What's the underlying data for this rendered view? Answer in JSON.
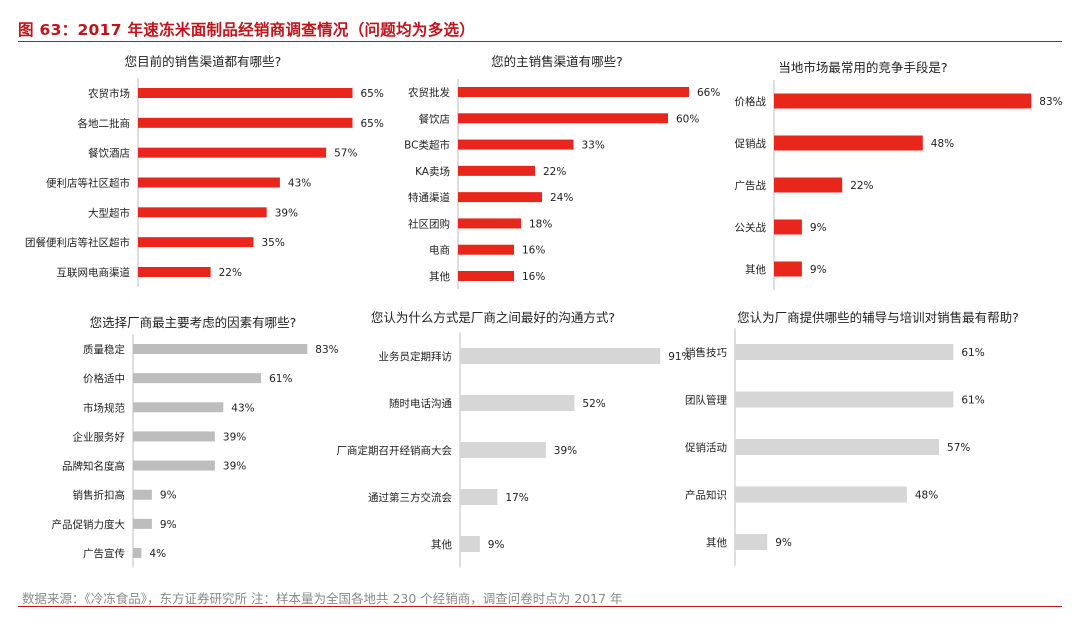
{
  "title": "图 63：2017 年速冻米面制品经销商调查情况（问题均为多选）",
  "footer": "数据来源：《冷冻食品》，东方证券研究所 注：样本量为全国各地共 230 个经销商，调查问卷时点为 2017 年",
  "colors": {
    "accent": "#c0141c",
    "red_bar": "#e8261c",
    "gray_bar": "#bdbdbd",
    "light_gray_bar": "#d6d6d6"
  },
  "chart_data": [
    {
      "type": "bar",
      "orientation": "horizontal",
      "title": "您目前的销售渠道都有哪些?",
      "categories": [
        "农贸市场",
        "各地二批商",
        "餐饮酒店",
        "便利店等社区超市",
        "大型超市",
        "团餐便利店等社区超市",
        "互联网电商渠道"
      ],
      "values": [
        65,
        65,
        57,
        43,
        39,
        35,
        22
      ],
      "unit": "%",
      "xlim": [
        0,
        100
      ],
      "grid": false
    },
    {
      "type": "bar",
      "orientation": "horizontal",
      "title": "您的主销售渠道有哪些?",
      "categories": [
        "农贸批发",
        "餐饮店",
        "BC类超市",
        "KA卖场",
        "特通渠道",
        "社区团购",
        "电商",
        "其他"
      ],
      "values": [
        66,
        60,
        33,
        22,
        24,
        18,
        16,
        16
      ],
      "unit": "%",
      "xlim": [
        0,
        100
      ],
      "grid": false
    },
    {
      "type": "bar",
      "orientation": "horizontal",
      "title": "当地市场最常用的竞争手段是?",
      "categories": [
        "价格战",
        "促销战",
        "广告战",
        "公关战",
        "其他"
      ],
      "values": [
        83,
        48,
        22,
        9,
        9
      ],
      "unit": "%",
      "xlim": [
        0,
        100
      ],
      "grid": false
    },
    {
      "type": "bar",
      "orientation": "horizontal",
      "title": "您选择厂商最主要考虑的因素有哪些?",
      "categories": [
        "质量稳定",
        "价格适中",
        "市场规范",
        "企业服务好",
        "品牌知名度高",
        "销售折扣高",
        "产品促销力度大",
        "广告宣传"
      ],
      "values": [
        83,
        61,
        43,
        39,
        39,
        9,
        9,
        4
      ],
      "unit": "%",
      "xlim": [
        0,
        100
      ],
      "grid": false
    },
    {
      "type": "bar",
      "orientation": "horizontal",
      "title": "您认为什么方式是厂商之间最好的沟通方式?",
      "categories": [
        "业务员定期拜访",
        "随时电话沟通",
        "厂商定期召开经销商大会",
        "通过第三方交流会",
        "其他"
      ],
      "values": [
        91,
        52,
        39,
        17,
        9
      ],
      "unit": "%",
      "xlim": [
        0,
        100
      ],
      "grid": false
    },
    {
      "type": "bar",
      "orientation": "horizontal",
      "title": "您认为厂商提供哪些的辅导与培训对销售最有帮助?",
      "categories": [
        "销售技巧",
        "团队管理",
        "促销活动",
        "产品知识",
        "其他"
      ],
      "values": [
        61,
        61,
        57,
        48,
        9
      ],
      "unit": "%",
      "xlim": [
        0,
        100
      ],
      "grid": false
    }
  ]
}
